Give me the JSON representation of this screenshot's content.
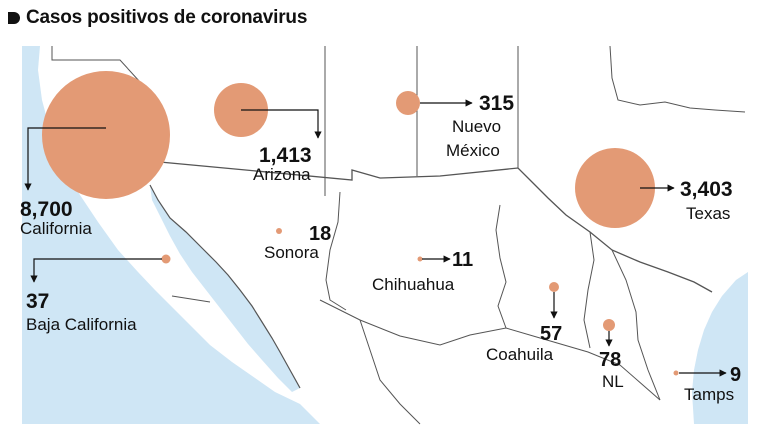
{
  "title": "Casos positivos de coronavirus",
  "colors": {
    "bubble": "#e39a75",
    "water": "#cfe6f5",
    "land": "#ffffff",
    "border": "#555555",
    "text": "#111111"
  },
  "regions": [
    {
      "id": "california",
      "name": "California",
      "cases": "8,700",
      "value": 8700
    },
    {
      "id": "arizona",
      "name": "Arizona",
      "cases": "1,413",
      "value": 1413
    },
    {
      "id": "nuevo-mexico",
      "name": "Nuevo\nMéxico",
      "name_line1": "Nuevo",
      "name_line2": "México",
      "cases": "315",
      "value": 315
    },
    {
      "id": "texas",
      "name": "Texas",
      "cases": "3,403",
      "value": 3403
    },
    {
      "id": "baja-california",
      "name": "Baja California",
      "cases": "37",
      "value": 37
    },
    {
      "id": "sonora",
      "name": "Sonora",
      "cases": "18",
      "value": 18
    },
    {
      "id": "chihuahua",
      "name": "Chihuahua",
      "cases": "11",
      "value": 11
    },
    {
      "id": "coahuila",
      "name": "Coahuila",
      "cases": "57",
      "value": 57
    },
    {
      "id": "nl",
      "name": "NL",
      "cases": "78",
      "value": 78
    },
    {
      "id": "tamps",
      "name": "Tamps",
      "cases": "9",
      "value": 9
    }
  ]
}
